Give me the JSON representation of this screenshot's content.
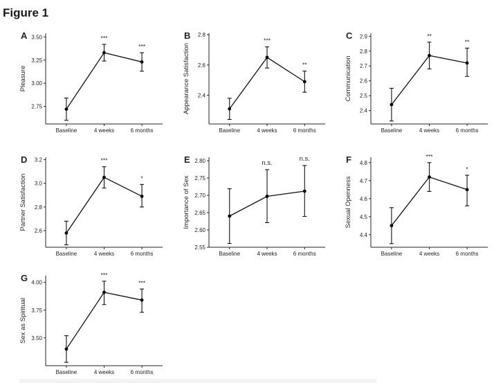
{
  "figure_title": "Figure 1",
  "chart_data": [
    {
      "panel": "A",
      "type": "line",
      "ylabel": "Pleasure",
      "categories": [
        "Baseline",
        "4 weeks",
        "6 months"
      ],
      "values": [
        2.72,
        3.33,
        3.23
      ],
      "lower": [
        2.6,
        3.24,
        3.13
      ],
      "upper": [
        2.84,
        3.42,
        3.33
      ],
      "sig": [
        "",
        "***",
        "***"
      ],
      "yticks": [
        2.75,
        3.0,
        3.25,
        3.5
      ],
      "ytick_labels": [
        "2.75",
        "3.00",
        "3.25",
        "3.50"
      ],
      "ylim": [
        2.56,
        3.54
      ]
    },
    {
      "panel": "B",
      "type": "line",
      "ylabel": "Appearance Satisfaction",
      "categories": [
        "Baseline",
        "4 weeks",
        "6 months"
      ],
      "values": [
        2.31,
        2.65,
        2.49
      ],
      "lower": [
        2.24,
        2.58,
        2.42
      ],
      "upper": [
        2.38,
        2.72,
        2.56
      ],
      "sig": [
        "",
        "***",
        "**"
      ],
      "yticks": [
        2.4,
        2.6,
        2.8
      ],
      "ytick_labels": [
        "2.4",
        "2.6",
        "2.8"
      ],
      "ylim": [
        2.21,
        2.81
      ]
    },
    {
      "panel": "C",
      "type": "line",
      "ylabel": "Communication",
      "categories": [
        "Baseline",
        "4 weeks",
        "6 months"
      ],
      "values": [
        2.44,
        2.77,
        2.72
      ],
      "lower": [
        2.33,
        2.68,
        2.63
      ],
      "upper": [
        2.55,
        2.86,
        2.82
      ],
      "sig": [
        "",
        "**",
        "**"
      ],
      "yticks": [
        2.4,
        2.5,
        2.6,
        2.7,
        2.8,
        2.9
      ],
      "ytick_labels": [
        "2.4",
        "2.5",
        "2.6",
        "2.7",
        "2.8",
        "2.9"
      ],
      "ylim": [
        2.31,
        2.92
      ]
    },
    {
      "panel": "D",
      "type": "line",
      "ylabel": "Partner Satisfaction",
      "categories": [
        "Baseline",
        "4 weeks",
        "6 months"
      ],
      "values": [
        2.58,
        3.05,
        2.89
      ],
      "lower": [
        2.48,
        2.96,
        2.8
      ],
      "upper": [
        2.68,
        3.14,
        2.99
      ],
      "sig": [
        "",
        "***",
        "*"
      ],
      "yticks": [
        2.6,
        2.8,
        3.0,
        3.2
      ],
      "ytick_labels": [
        "2.6",
        "2.8",
        "3.0",
        "3.2"
      ],
      "ylim": [
        2.46,
        3.22
      ]
    },
    {
      "panel": "E",
      "type": "line",
      "ylabel": "Importance of Sex",
      "categories": [
        "Baseline",
        "4 weeks",
        "6 months"
      ],
      "values": [
        2.64,
        2.697,
        2.712
      ],
      "lower": [
        2.561,
        2.621,
        2.639
      ],
      "upper": [
        2.719,
        2.774,
        2.786
      ],
      "sig": [
        "",
        "n.s.",
        "n.s."
      ],
      "yticks": [
        2.55,
        2.6,
        2.65,
        2.7,
        2.75,
        2.8
      ],
      "ytick_labels": [
        "2.55",
        "2.60",
        "2.65",
        "2.70",
        "2.75",
        "2.80"
      ],
      "ylim": [
        2.55,
        2.81
      ]
    },
    {
      "panel": "F",
      "type": "line",
      "ylabel": "Sexual Openness",
      "categories": [
        "Baseline",
        "4 weeks",
        "6 months"
      ],
      "values": [
        4.45,
        4.72,
        4.65
      ],
      "lower": [
        4.35,
        4.64,
        4.56
      ],
      "upper": [
        4.55,
        4.8,
        4.73
      ],
      "sig": [
        "",
        "***",
        "*"
      ],
      "yticks": [
        4.4,
        4.5,
        4.6,
        4.7,
        4.8
      ],
      "ytick_labels": [
        "4.4",
        "4.5",
        "4.6",
        "4.7",
        "4.8"
      ],
      "ylim": [
        4.33,
        4.83
      ]
    },
    {
      "panel": "G",
      "type": "line",
      "ylabel": "Sex as Spiritual",
      "categories": [
        "Baseline",
        "4 weeks",
        "6 months"
      ],
      "values": [
        3.4,
        3.91,
        3.84
      ],
      "lower": [
        3.28,
        3.8,
        3.73
      ],
      "upper": [
        3.52,
        4.01,
        3.94
      ],
      "sig": [
        "",
        "***",
        "***"
      ],
      "yticks": [
        3.5,
        3.75,
        4.0
      ],
      "ytick_labels": [
        "3.50",
        "3.75",
        "4.00"
      ],
      "ylim": [
        3.25,
        4.06
      ]
    }
  ]
}
